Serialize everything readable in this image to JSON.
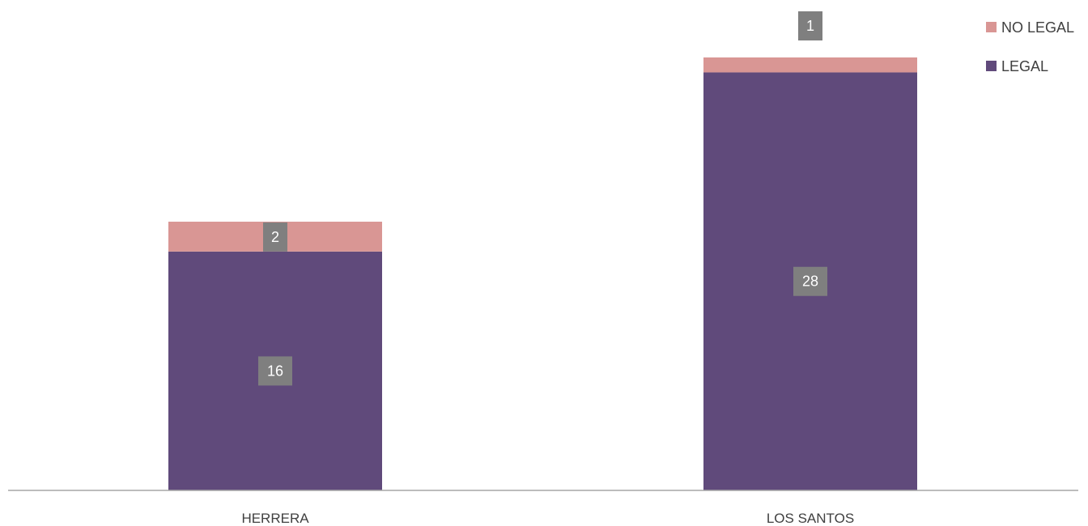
{
  "chart_data": {
    "type": "bar",
    "stacked": true,
    "categories": [
      "HERRERA",
      "LOS SANTOS"
    ],
    "series": [
      {
        "name": "LEGAL",
        "values": [
          16,
          28
        ],
        "color": "#604a7b"
      },
      {
        "name": "NO LEGAL",
        "values": [
          2,
          1
        ],
        "color": "#d99694"
      }
    ],
    "ylim": [
      0,
      29
    ],
    "grid": false,
    "legend": {
      "position": "top-right",
      "order": [
        "NO LEGAL",
        "LEGAL"
      ]
    },
    "data_label_color": "#7f7f7f",
    "axis_color": "#a6a6a6"
  }
}
